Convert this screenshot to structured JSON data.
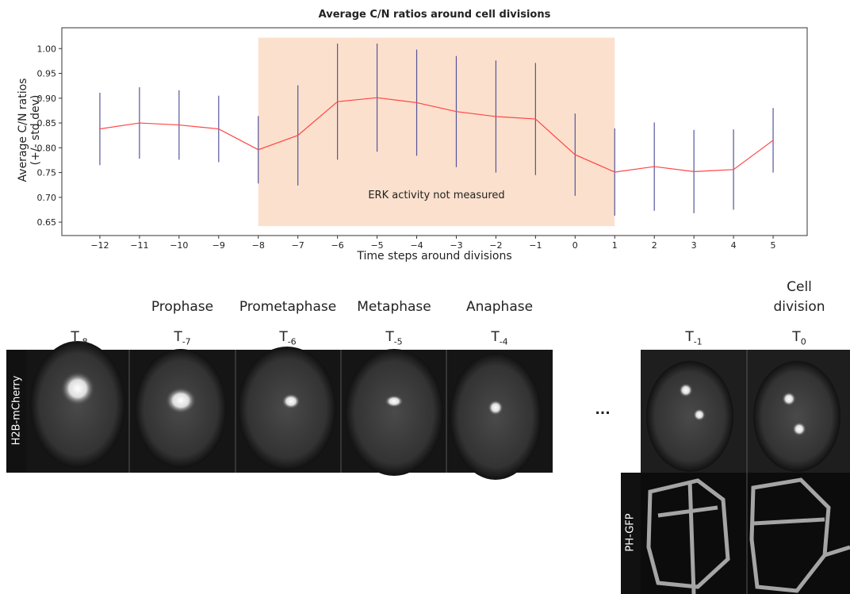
{
  "chart_data": {
    "type": "line",
    "title": "Average C/N ratios around cell divisions",
    "xlabel": "Time steps around divisions",
    "ylabel": "Average C/N ratios (+/- std dev)",
    "annotation": "ERK activity not measured",
    "shaded_region": {
      "xlim": [
        -8,
        1
      ],
      "ylim": [
        0.642,
        1.022
      ],
      "color": "#fbe0cd"
    },
    "x": [
      -12,
      -11,
      -10,
      -9,
      -8,
      -7,
      -6,
      -5,
      -4,
      -3,
      -2,
      -1,
      0,
      1,
      2,
      3,
      4,
      5
    ],
    "series": [
      {
        "color": "#ff4545",
        "error_color": "#55559a",
        "values": [
          0.838,
          0.85,
          0.846,
          0.838,
          0.796,
          0.825,
          0.893,
          0.901,
          0.891,
          0.873,
          0.863,
          0.858,
          0.786,
          0.751,
          0.762,
          0.752,
          0.756,
          0.815
        ],
        "errors": [
          0.073,
          0.072,
          0.07,
          0.067,
          0.068,
          0.101,
          0.117,
          0.109,
          0.107,
          0.112,
          0.113,
          0.113,
          0.083,
          0.088,
          0.089,
          0.084,
          0.081,
          0.065
        ]
      }
    ],
    "xlim": [
      -12.96,
      5.86
    ],
    "ylim": [
      0.623,
      1.042
    ],
    "xticks": [
      {
        "value": -12,
        "label": "−12"
      },
      {
        "value": -11,
        "label": "−11"
      },
      {
        "value": -10,
        "label": "−10"
      },
      {
        "value": -9,
        "label": "−9"
      },
      {
        "value": -8,
        "label": "−8"
      },
      {
        "value": -7,
        "label": "−7"
      },
      {
        "value": -6,
        "label": "−6"
      },
      {
        "value": -5,
        "label": "−5"
      },
      {
        "value": -4,
        "label": "−4"
      },
      {
        "value": -3,
        "label": "−3"
      },
      {
        "value": -2,
        "label": "−2"
      },
      {
        "value": -1,
        "label": "−1"
      },
      0,
      1,
      2,
      3,
      4,
      5
    ],
    "yticks": [
      0.65,
      {
        "value": 0.7,
        "label": "0.70"
      },
      0.75,
      {
        "value": 0.8,
        "label": "0.80"
      },
      0.85,
      {
        "value": 0.9,
        "label": "0.90"
      },
      0.95,
      {
        "value": 1.0,
        "label": "1.00"
      }
    ]
  },
  "panels": {
    "rows": [
      {
        "label": "H2B-mCherry"
      },
      {
        "label": "PH-GFP"
      }
    ],
    "columns": [
      {
        "time": "T",
        "index": "-8"
      },
      {
        "stage": "Prophase",
        "time": "T",
        "index": "-7"
      },
      {
        "stage": "Prometaphase",
        "time": "T",
        "index": "-6"
      },
      {
        "stage": "Metaphase",
        "time": "T",
        "index": "-5"
      },
      {
        "stage": "Anaphase",
        "time": "T",
        "index": "-4"
      },
      {
        "time": "T",
        "index": "-1"
      },
      {
        "stage": "Cell division",
        "time": "T",
        "index": "0"
      }
    ],
    "ellipsis": "..."
  }
}
